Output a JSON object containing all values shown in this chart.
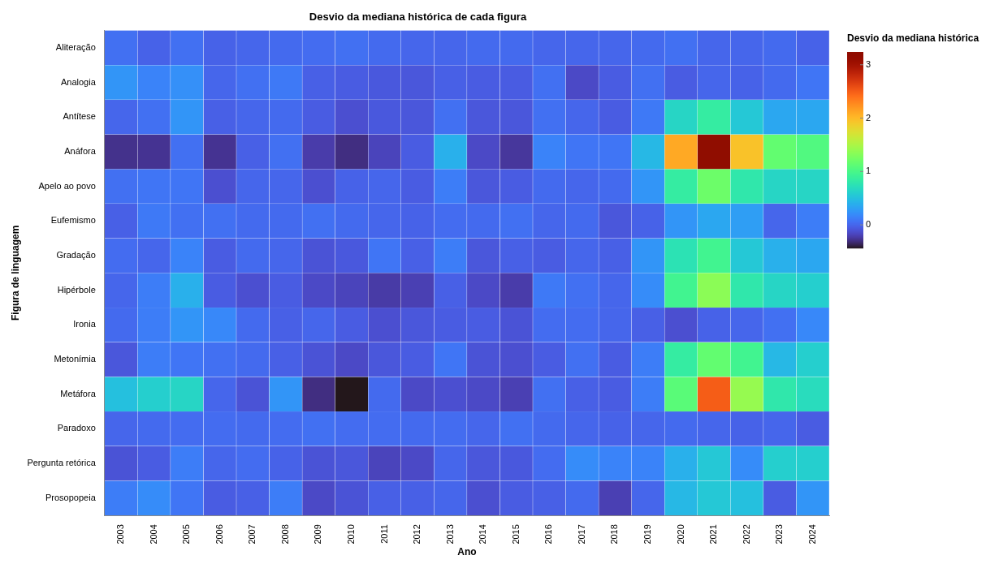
{
  "chart_data": {
    "type": "heatmap",
    "title": "Desvio da mediana histórica de cada figura",
    "xlabel": "Ano",
    "ylabel": "Figura de linguagem",
    "clabel": "Desvio da mediana histórica",
    "categories": [
      "2003",
      "2004",
      "2005",
      "2006",
      "2007",
      "2008",
      "2009",
      "2010",
      "2011",
      "2012",
      "2013",
      "2014",
      "2015",
      "2016",
      "2017",
      "2018",
      "2019",
      "2020",
      "2021",
      "2022",
      "2023",
      "2024"
    ],
    "y_categories": [
      "Aliteração",
      "Analogia",
      "Antítese",
      "Anáfora",
      "Apelo ao povo",
      "Eufemismo",
      "Gradação",
      "Hipérbole",
      "Ironia",
      "Metonímia",
      "Metáfora",
      "Paradoxo",
      "Pergunta retórica",
      "Prosopopeia"
    ],
    "cells": [
      [
        0.05,
        -0.02,
        0.05,
        -0.02,
        0.0,
        0.02,
        0.03,
        0.05,
        0.02,
        0.0,
        0.0,
        0.02,
        0.02,
        0.0,
        0.0,
        0.0,
        0.02,
        0.05,
        0.0,
        0.0,
        0.02,
        -0.02
      ],
      [
        0.25,
        0.15,
        0.22,
        0.0,
        0.05,
        0.1,
        -0.03,
        -0.05,
        -0.07,
        -0.08,
        -0.03,
        -0.05,
        -0.05,
        0.05,
        -0.15,
        -0.05,
        0.05,
        -0.05,
        0.0,
        -0.02,
        0.02,
        0.08
      ],
      [
        0.0,
        0.05,
        0.25,
        -0.03,
        0.0,
        0.02,
        -0.05,
        -0.12,
        -0.07,
        -0.08,
        0.05,
        -0.08,
        -0.08,
        0.05,
        0.0,
        -0.05,
        0.1,
        0.65,
        0.85,
        0.55,
        0.35,
        0.35
      ],
      [
        -0.28,
        -0.27,
        0.05,
        -0.27,
        -0.03,
        0.05,
        -0.22,
        -0.3,
        -0.18,
        -0.05,
        0.4,
        -0.15,
        -0.25,
        0.15,
        0.08,
        0.08,
        0.45,
        2.1,
        3.24,
        1.95,
        1.15,
        1.05
      ],
      [
        0.05,
        0.08,
        0.08,
        -0.12,
        0.0,
        0.0,
        -0.12,
        -0.02,
        0.0,
        -0.05,
        0.12,
        -0.08,
        -0.05,
        0.02,
        0.0,
        0.02,
        0.25,
        0.85,
        1.2,
        0.8,
        0.65,
        0.65
      ],
      [
        -0.03,
        0.1,
        0.05,
        0.05,
        0.02,
        0.02,
        0.05,
        0.02,
        0.0,
        -0.02,
        0.03,
        0.02,
        0.05,
        0.0,
        0.02,
        -0.08,
        -0.02,
        0.25,
        0.35,
        0.3,
        0.0,
        0.12
      ],
      [
        0.03,
        0.0,
        0.15,
        -0.05,
        0.02,
        0.0,
        -0.1,
        -0.07,
        0.08,
        -0.03,
        0.12,
        -0.08,
        -0.03,
        -0.05,
        0.0,
        -0.03,
        0.25,
        0.75,
        0.95,
        0.55,
        0.4,
        0.35
      ],
      [
        0.0,
        0.12,
        0.4,
        -0.05,
        -0.12,
        -0.05,
        -0.15,
        -0.18,
        -0.23,
        -0.2,
        -0.03,
        -0.15,
        -0.22,
        0.1,
        0.05,
        0.0,
        0.2,
        0.95,
        1.35,
        0.8,
        0.65,
        0.6
      ],
      [
        0.02,
        0.12,
        0.25,
        0.18,
        0.02,
        -0.03,
        0.0,
        -0.05,
        -0.12,
        -0.08,
        -0.05,
        -0.05,
        -0.1,
        0.03,
        0.03,
        0.0,
        -0.03,
        -0.12,
        -0.02,
        0.0,
        0.05,
        0.18
      ],
      [
        -0.08,
        0.12,
        0.08,
        0.05,
        0.02,
        -0.03,
        -0.1,
        -0.15,
        -0.08,
        -0.05,
        0.08,
        -0.1,
        -0.12,
        -0.05,
        0.05,
        -0.05,
        0.12,
        0.85,
        1.15,
        0.95,
        0.45,
        0.6
      ],
      [
        0.5,
        0.6,
        0.65,
        0.0,
        -0.1,
        0.25,
        -0.3,
        -0.44,
        0.02,
        -0.15,
        -0.12,
        -0.15,
        -0.2,
        0.05,
        -0.03,
        -0.05,
        0.12,
        1.1,
        2.5,
        1.4,
        0.8,
        0.7
      ],
      [
        0.0,
        0.02,
        0.03,
        0.03,
        0.02,
        0.03,
        0.05,
        0.03,
        0.03,
        0.02,
        0.03,
        0.0,
        0.05,
        0.02,
        0.0,
        -0.02,
        0.0,
        0.02,
        0.0,
        -0.02,
        0.0,
        -0.05
      ],
      [
        -0.1,
        -0.05,
        0.12,
        0.0,
        0.03,
        -0.02,
        -0.1,
        -0.08,
        -0.18,
        -0.15,
        0.0,
        -0.08,
        -0.07,
        0.03,
        0.2,
        0.15,
        0.15,
        0.4,
        0.55,
        0.2,
        0.6,
        0.6
      ],
      [
        0.12,
        0.2,
        0.08,
        -0.05,
        -0.03,
        0.12,
        -0.15,
        -0.1,
        -0.03,
        -0.03,
        0.0,
        -0.12,
        -0.05,
        -0.03,
        0.02,
        -0.2,
        0.0,
        0.45,
        0.55,
        0.5,
        -0.05,
        0.25
      ]
    ],
    "clim": [
      -0.44,
      3.24
    ],
    "cticks": [
      0,
      1,
      2,
      3
    ]
  }
}
